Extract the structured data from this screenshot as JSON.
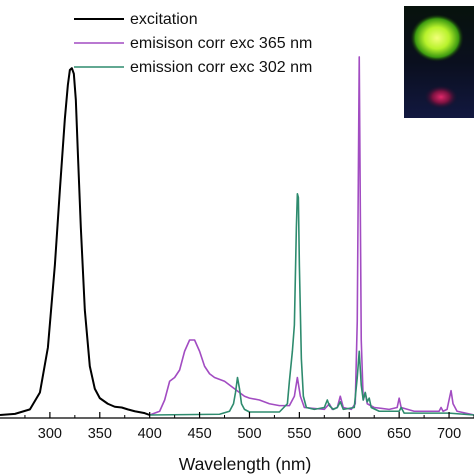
{
  "chart_data": {
    "type": "line",
    "xlabel": "Wavelength (nm)",
    "ylabel": "",
    "xlim": [
      250,
      725
    ],
    "ylim": [
      0,
      1.0
    ],
    "xticks": [
      300,
      350,
      400,
      450,
      500,
      550,
      600,
      650,
      700
    ],
    "xtick_labels": [
      "300",
      "350",
      "400",
      "450",
      "500",
      "550",
      "600",
      "650",
      "700"
    ],
    "grid": false,
    "legend_position": "top-left",
    "inset": {
      "description_icons": [
        "green-glow-vial-icon",
        "red-glow-vial-icon"
      ]
    },
    "series": [
      {
        "name": "excitation",
        "color": "#000000",
        "points": [
          [
            250,
            0.0
          ],
          [
            265,
            0.003
          ],
          [
            280,
            0.015
          ],
          [
            290,
            0.06
          ],
          [
            298,
            0.18
          ],
          [
            305,
            0.4
          ],
          [
            310,
            0.6
          ],
          [
            315,
            0.79
          ],
          [
            318,
            0.88
          ],
          [
            320,
            0.92
          ],
          [
            322,
            0.925
          ],
          [
            324,
            0.91
          ],
          [
            326,
            0.84
          ],
          [
            328,
            0.7
          ],
          [
            331,
            0.5
          ],
          [
            335,
            0.28
          ],
          [
            340,
            0.13
          ],
          [
            345,
            0.07
          ],
          [
            350,
            0.045
          ],
          [
            358,
            0.03
          ],
          [
            365,
            0.022
          ],
          [
            372,
            0.02
          ],
          [
            378,
            0.015
          ],
          [
            385,
            0.01
          ],
          [
            395,
            0.005
          ],
          [
            400,
            0.0
          ]
        ]
      },
      {
        "name": "emisison corr exc 365 nm",
        "color": "#a24cc2",
        "points": [
          [
            400,
            0.0
          ],
          [
            410,
            0.01
          ],
          [
            415,
            0.04
          ],
          [
            420,
            0.09
          ],
          [
            425,
            0.1
          ],
          [
            430,
            0.12
          ],
          [
            435,
            0.17
          ],
          [
            440,
            0.2
          ],
          [
            445,
            0.2
          ],
          [
            450,
            0.17
          ],
          [
            455,
            0.13
          ],
          [
            460,
            0.11
          ],
          [
            465,
            0.1
          ],
          [
            470,
            0.095
          ],
          [
            475,
            0.09
          ],
          [
            480,
            0.08
          ],
          [
            485,
            0.07
          ],
          [
            490,
            0.06
          ],
          [
            495,
            0.05
          ],
          [
            500,
            0.045
          ],
          [
            510,
            0.04
          ],
          [
            520,
            0.03
          ],
          [
            530,
            0.025
          ],
          [
            540,
            0.025
          ],
          [
            545,
            0.05
          ],
          [
            548,
            0.1
          ],
          [
            551,
            0.05
          ],
          [
            555,
            0.02
          ],
          [
            575,
            0.015
          ],
          [
            580,
            0.03
          ],
          [
            583,
            0.015
          ],
          [
            588,
            0.02
          ],
          [
            591,
            0.05
          ],
          [
            594,
            0.02
          ],
          [
            602,
            0.015
          ],
          [
            606,
            0.03
          ],
          [
            608,
            0.25
          ],
          [
            610,
            0.955
          ],
          [
            612,
            0.2
          ],
          [
            614,
            0.04
          ],
          [
            616,
            0.06
          ],
          [
            618,
            0.03
          ],
          [
            625,
            0.02
          ],
          [
            640,
            0.015
          ],
          [
            648,
            0.02
          ],
          [
            650,
            0.045
          ],
          [
            652,
            0.02
          ],
          [
            665,
            0.01
          ],
          [
            690,
            0.01
          ],
          [
            692,
            0.02
          ],
          [
            694,
            0.01
          ],
          [
            698,
            0.015
          ],
          [
            700,
            0.04
          ],
          [
            702,
            0.065
          ],
          [
            704,
            0.03
          ],
          [
            708,
            0.01
          ],
          [
            725,
            0.0
          ]
        ]
      },
      {
        "name": "emission corr exc 302 nm",
        "color": "#2e8b6e",
        "points": [
          [
            400,
            0.0
          ],
          [
            470,
            0.002
          ],
          [
            480,
            0.01
          ],
          [
            484,
            0.03
          ],
          [
            486,
            0.06
          ],
          [
            488,
            0.1
          ],
          [
            490,
            0.07
          ],
          [
            492,
            0.03
          ],
          [
            495,
            0.015
          ],
          [
            500,
            0.008
          ],
          [
            530,
            0.008
          ],
          [
            538,
            0.03
          ],
          [
            540,
            0.09
          ],
          [
            543,
            0.17
          ],
          [
            545,
            0.24
          ],
          [
            547,
            0.5
          ],
          [
            548,
            0.59
          ],
          [
            549,
            0.58
          ],
          [
            550,
            0.4
          ],
          [
            552,
            0.15
          ],
          [
            554,
            0.05
          ],
          [
            557,
            0.02
          ],
          [
            565,
            0.015
          ],
          [
            575,
            0.02
          ],
          [
            578,
            0.04
          ],
          [
            580,
            0.025
          ],
          [
            584,
            0.015
          ],
          [
            588,
            0.02
          ],
          [
            591,
            0.035
          ],
          [
            594,
            0.015
          ],
          [
            605,
            0.02
          ],
          [
            608,
            0.1
          ],
          [
            610,
            0.17
          ],
          [
            612,
            0.08
          ],
          [
            614,
            0.04
          ],
          [
            616,
            0.06
          ],
          [
            618,
            0.035
          ],
          [
            620,
            0.045
          ],
          [
            622,
            0.02
          ],
          [
            630,
            0.01
          ],
          [
            650,
            0.01
          ],
          [
            652,
            0.02
          ],
          [
            655,
            0.005
          ],
          [
            700,
            0.005
          ],
          [
            725,
            0.0
          ]
        ]
      }
    ]
  }
}
